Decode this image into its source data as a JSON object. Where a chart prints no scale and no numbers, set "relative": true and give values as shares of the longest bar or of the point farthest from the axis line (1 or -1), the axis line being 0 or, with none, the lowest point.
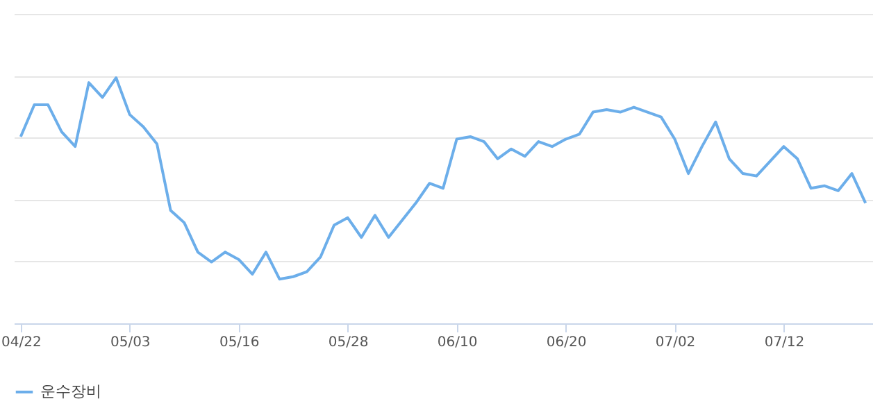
{
  "chart_data": {
    "type": "line",
    "relative": true,
    "grid": "y",
    "legend": "bottom",
    "categories": [
      "04/22",
      null,
      null,
      null,
      null,
      null,
      null,
      null,
      "05/03",
      null,
      null,
      null,
      null,
      null,
      null,
      null,
      "05/16",
      null,
      null,
      null,
      null,
      null,
      null,
      null,
      "05/28",
      null,
      null,
      null,
      null,
      null,
      null,
      null,
      "06/10",
      null,
      null,
      null,
      null,
      null,
      null,
      null,
      "06/20",
      null,
      null,
      null,
      null,
      null,
      null,
      null,
      "07/02",
      null,
      null,
      null,
      null,
      null,
      null,
      null,
      "07/12",
      null,
      null,
      null,
      null,
      null,
      null
    ],
    "series": [
      {
        "name": "운수장비",
        "color": "#6caeea",
        "values": [
          0.76,
          0.89,
          0.89,
          0.78,
          0.72,
          0.98,
          0.92,
          1,
          0.85,
          0.8,
          0.73,
          0.46,
          0.41,
          0.29,
          0.25,
          0.29,
          0.26,
          0.2,
          0.29,
          0.18,
          0.19,
          0.21,
          0.27,
          0.4,
          0.43,
          0.35,
          0.44,
          0.35,
          0.42,
          0.49,
          0.57,
          0.55,
          0.75,
          0.76,
          0.74,
          0.67,
          0.71,
          0.68,
          0.74,
          0.72,
          0.75,
          0.77,
          0.86,
          0.87,
          0.86,
          0.88,
          0.86,
          0.84,
          0.75,
          0.61,
          0.72,
          0.82,
          0.67,
          0.61,
          0.6,
          0.66,
          0.72,
          0.67,
          0.55,
          0.56,
          0.54,
          0.61,
          0.49
        ]
      }
    ]
  }
}
